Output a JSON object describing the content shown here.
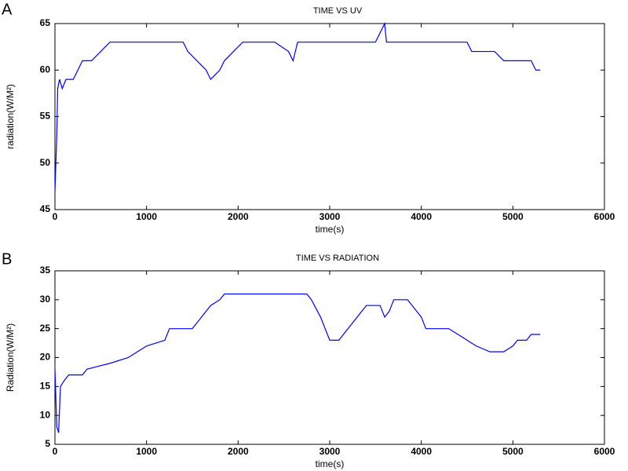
{
  "chart_data": [
    {
      "type": "line",
      "panel_label": "A",
      "title": "TIME VS UV",
      "x_label": "time(s)",
      "y_label": "radiation(W/M²)",
      "color": "#0000ff",
      "x": [
        0,
        10,
        20,
        30,
        50,
        80,
        120,
        200,
        250,
        300,
        400,
        500,
        600,
        1000,
        1400,
        1450,
        1550,
        1650,
        1700,
        1800,
        1850,
        1950,
        2050,
        2400,
        2550,
        2600,
        2650,
        3500,
        3550,
        3600,
        3620,
        4500,
        4550,
        4800,
        4900,
        5200,
        5250,
        5300
      ],
      "values": [
        47,
        50,
        53,
        58,
        59,
        58,
        59,
        59,
        60,
        61,
        61,
        62,
        63,
        63,
        63,
        62,
        61,
        60,
        59,
        60,
        61,
        62,
        63,
        63,
        62,
        61,
        63,
        63,
        64,
        65,
        63,
        63,
        62,
        62,
        61,
        61,
        60,
        60
      ],
      "xlim": [
        0,
        6000
      ],
      "ylim": [
        45,
        65
      ],
      "xticks": [
        0,
        1000,
        2000,
        3000,
        4000,
        5000,
        6000
      ],
      "yticks": [
        45,
        50,
        55,
        60,
        65
      ]
    },
    {
      "type": "line",
      "panel_label": "B",
      "title": "TIME VS RADIATION",
      "x_label": "time(s)",
      "y_label": "Radiation(W/M²)",
      "color": "#0000ff",
      "x": [
        0,
        20,
        40,
        60,
        100,
        150,
        300,
        350,
        600,
        800,
        900,
        1000,
        1200,
        1250,
        1500,
        1600,
        1700,
        1800,
        1850,
        2750,
        2800,
        2900,
        2950,
        3000,
        3100,
        3200,
        3300,
        3400,
        3550,
        3600,
        3650,
        3700,
        3850,
        3900,
        4000,
        4050,
        4300,
        4400,
        4500,
        4600,
        4750,
        4900,
        5000,
        5050,
        5150,
        5200,
        5300
      ],
      "values": [
        18,
        8,
        7,
        15,
        16,
        17,
        17,
        18,
        19,
        20,
        21,
        22,
        23,
        25,
        25,
        27,
        29,
        30,
        31,
        31,
        30,
        27,
        25,
        23,
        23,
        25,
        27,
        29,
        29,
        27,
        28,
        30,
        30,
        29,
        27,
        25,
        25,
        24,
        23,
        22,
        21,
        21,
        22,
        23,
        23,
        24,
        24
      ],
      "xlim": [
        0,
        6000
      ],
      "ylim": [
        5,
        35
      ],
      "xticks": [
        0,
        1000,
        2000,
        3000,
        4000,
        5000,
        6000
      ],
      "yticks": [
        5,
        10,
        15,
        20,
        25,
        30,
        35
      ]
    }
  ]
}
